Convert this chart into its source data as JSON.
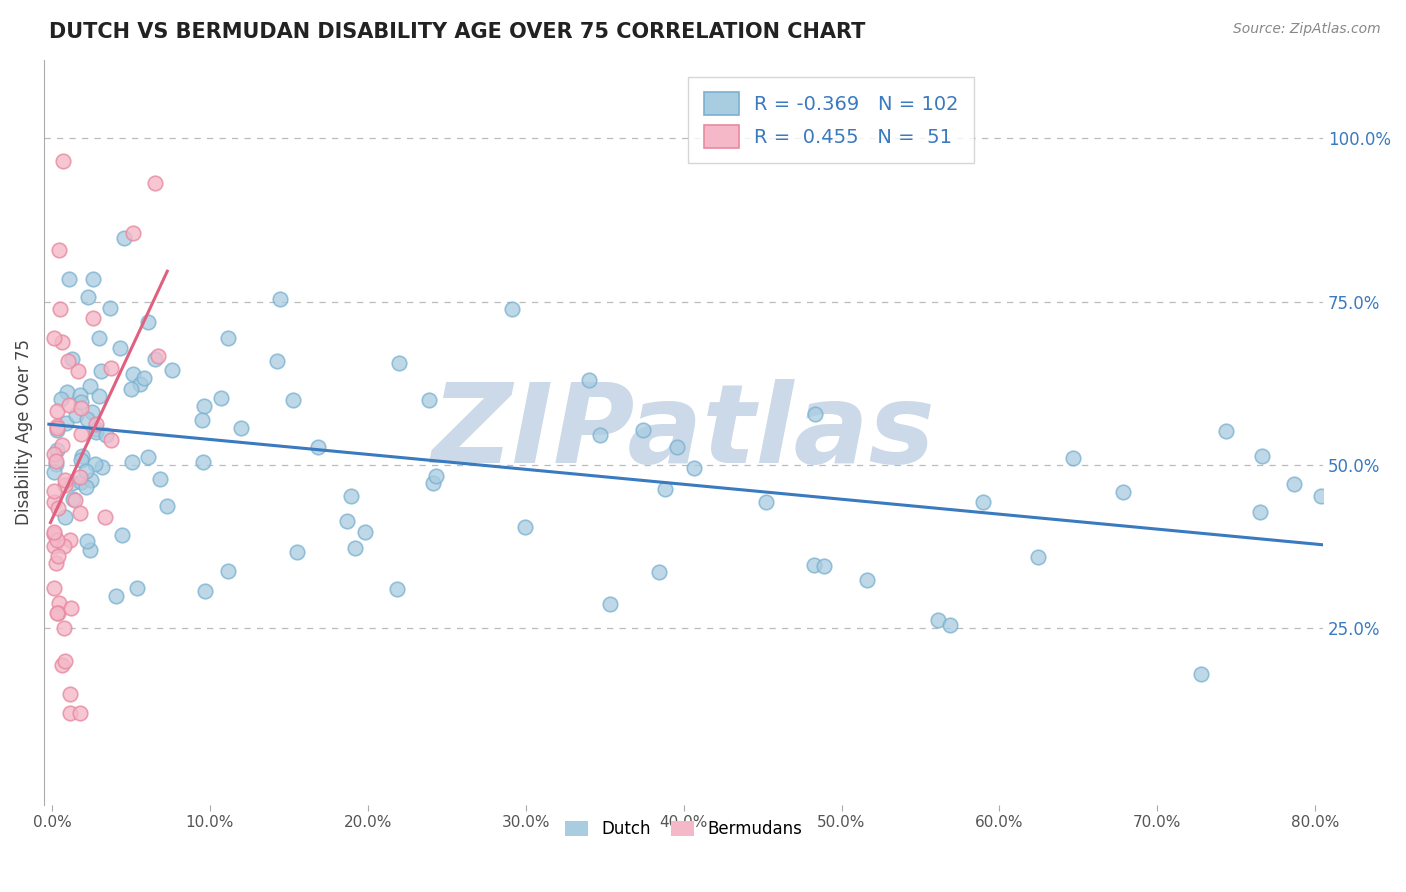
{
  "title": "DUTCH VS BERMUDAN DISABILITY AGE OVER 75 CORRELATION CHART",
  "source": "Source: ZipAtlas.com",
  "ylabel": "Disability Age Over 75",
  "xlim": [
    -0.005,
    0.805
  ],
  "ylim": [
    -0.02,
    1.12
  ],
  "xticks": [
    0.0,
    0.1,
    0.2,
    0.3,
    0.4,
    0.5,
    0.6,
    0.7,
    0.8
  ],
  "xticklabels": [
    "0.0%",
    "10.0%",
    "20.0%",
    "30.0%",
    "40.0%",
    "50.0%",
    "60.0%",
    "70.0%",
    "80.0%"
  ],
  "yticks_right": [
    0.25,
    0.5,
    0.75,
    1.0
  ],
  "yticklabels_right": [
    "25.0%",
    "50.0%",
    "75.0%",
    "100.0%"
  ],
  "dutch_R": -0.369,
  "dutch_N": 102,
  "bermudan_R": 0.455,
  "bermudan_N": 51,
  "dutch_scatter_color": "#a8cce0",
  "dutch_edge_color": "#7ab0d0",
  "bermudan_scatter_color": "#f4b8c8",
  "bermudan_edge_color": "#e88aa0",
  "dutch_line_color": "#3a7abf",
  "bermudan_line_color": "#e06080",
  "legend_text_color": "#3a7abf",
  "legend_n_color": "#3a7abf",
  "watermark": "ZIPatlas",
  "watermark_color": "#ccd9e8",
  "background_color": "#ffffff",
  "grid_color": "#bbbbbb",
  "title_color": "#222222",
  "right_axis_color": "#3a7abf"
}
